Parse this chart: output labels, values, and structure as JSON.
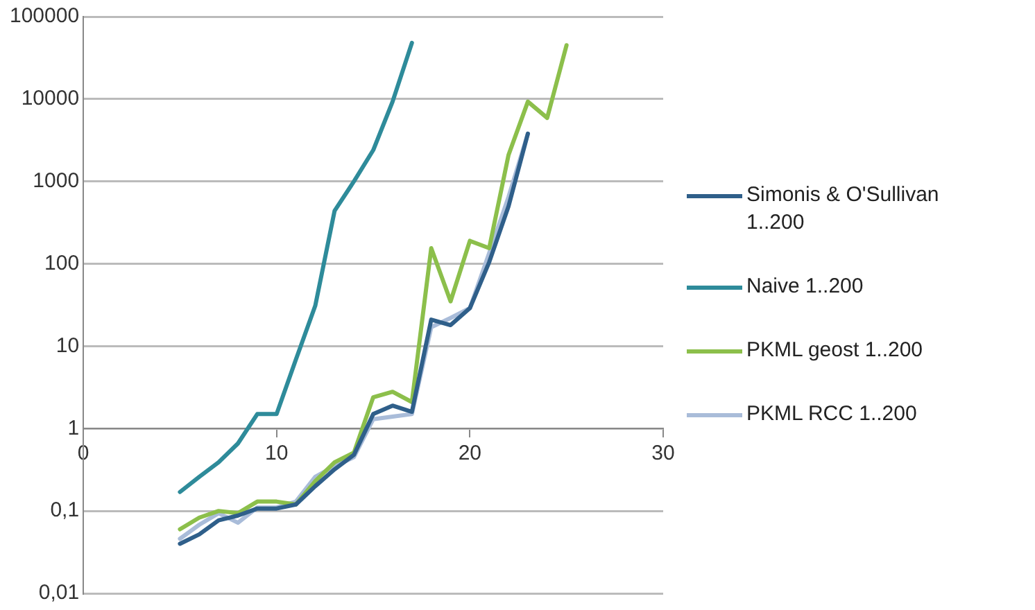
{
  "chart_data": {
    "type": "line",
    "x": [
      5,
      6,
      7,
      8,
      9,
      10,
      11,
      12,
      13,
      14,
      15,
      16,
      17,
      18,
      19,
      20,
      21,
      22,
      23,
      24,
      25
    ],
    "series": [
      {
        "name": "Simonis & O'Sullivan 1..200",
        "color": "#2f5f8a",
        "values": [
          0.04,
          0.052,
          0.077,
          0.088,
          0.107,
          0.107,
          0.12,
          0.2,
          0.32,
          0.48,
          1.5,
          1.9,
          1.6,
          21,
          18,
          29,
          105,
          500,
          3800,
          null,
          null
        ]
      },
      {
        "name": "Naive 1..200",
        "color": "#2e8b9a",
        "values": [
          0.17,
          0.26,
          0.39,
          0.66,
          1.5,
          1.5,
          6.9,
          31,
          440,
          1000,
          2400,
          9300,
          48000,
          null,
          null,
          null,
          null,
          null,
          null,
          null,
          null
        ]
      },
      {
        "name": "PKML geost 1..200",
        "color": "#8cbf4b",
        "values": [
          0.06,
          0.083,
          0.1,
          0.094,
          0.13,
          0.13,
          0.12,
          0.23,
          0.39,
          0.51,
          2.4,
          2.8,
          2.1,
          155,
          35,
          190,
          155,
          2100,
          9300,
          5900,
          45000
        ]
      },
      {
        "name": "PKML RCC 1..200",
        "color": "#a9bcd9",
        "values": [
          0.046,
          0.068,
          0.094,
          0.072,
          0.11,
          0.11,
          0.13,
          0.26,
          0.35,
          0.45,
          1.3,
          1.4,
          1.5,
          17,
          22,
          29,
          135,
          650,
          3800,
          null,
          null
        ]
      }
    ],
    "log": "y",
    "xlim": [
      0,
      30
    ],
    "xticks": [
      0,
      10,
      20,
      30
    ],
    "ylim": [
      0.01,
      100000
    ],
    "yticks": [
      {
        "value": 0.01,
        "label": "0,01"
      },
      {
        "value": 0.1,
        "label": "0,1"
      },
      1,
      10,
      100,
      1000,
      10000,
      100000
    ],
    "grid": "y",
    "legend": "right",
    "marker": "none",
    "line_style": "solid"
  }
}
